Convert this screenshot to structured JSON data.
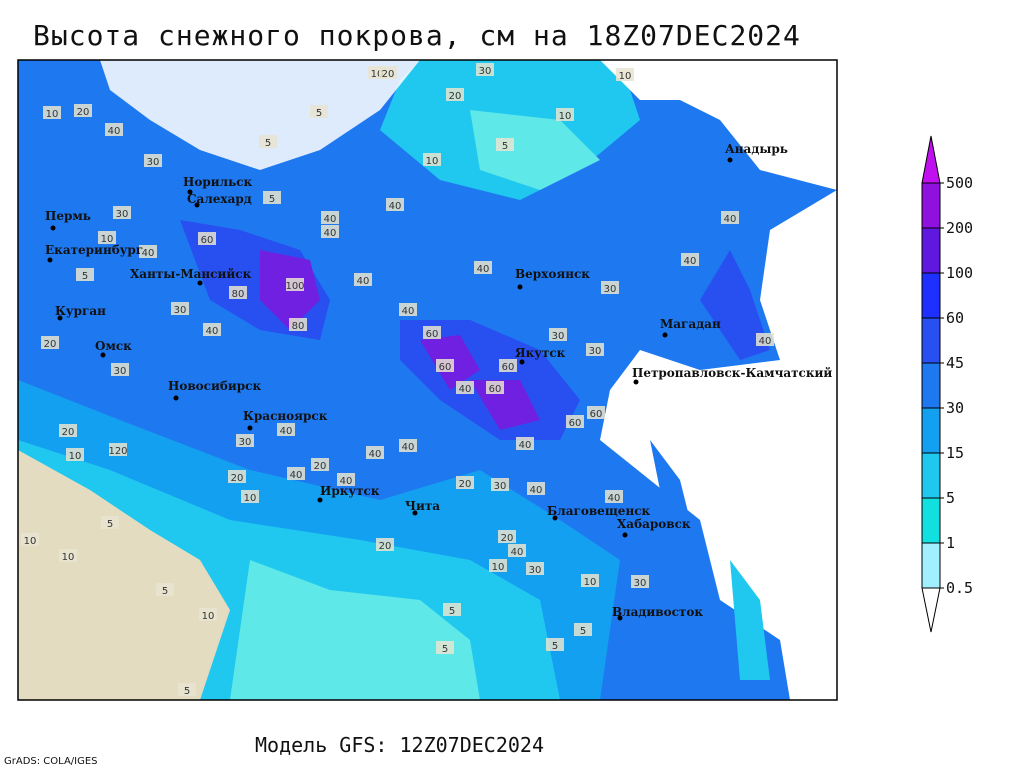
{
  "title": "Высота снежного покрова, см на 18Z07DEC2024",
  "footer": "Модель GFS: 12Z07DEC2024",
  "credit": "GrADS: COLA/IGES",
  "colorbar": {
    "levels": [
      0.5,
      1,
      5,
      15,
      30,
      45,
      60,
      100,
      200,
      500
    ],
    "colors": [
      "#ffffff",
      "#a0f0ff",
      "#10e0e0",
      "#20c8f0",
      "#14a0f0",
      "#1e78f0",
      "#2850f0",
      "#1e30ff",
      "#6018e0",
      "#9010e0",
      "#c010f0"
    ]
  },
  "cities": [
    "Норильск",
    "Салехард",
    "Пермь",
    "Екатеринбург",
    "Ханты-Мансийск",
    "Курган",
    "Омск",
    "Новосибирск",
    "Красноярск",
    "Иркутск",
    "Чита",
    "Верхоянск",
    "Якутск",
    "Магадан",
    "Анадырь",
    "Петропавловск-Камчатский",
    "Благовещенск",
    "Хабаровск",
    "Владивосток"
  ],
  "contour_labels": [
    10,
    20,
    40,
    30,
    30,
    10,
    5,
    60,
    30,
    40,
    80,
    80,
    100,
    40,
    40,
    40,
    40,
    40,
    60,
    60,
    40,
    60,
    60,
    30,
    60,
    60,
    40,
    20,
    30,
    40,
    40,
    20,
    40,
    10,
    30,
    10,
    30,
    40,
    30,
    40,
    40,
    40,
    30,
    20,
    30,
    10,
    10,
    10,
    5,
    5,
    5,
    10,
    20,
    5,
    40,
    30,
    20,
    20,
    10,
    120,
    30,
    40,
    20,
    40,
    40,
    40,
    40,
    20,
    10,
    10,
    5,
    5,
    10,
    10,
    5,
    5,
    5,
    5,
    20,
    5
  ]
}
